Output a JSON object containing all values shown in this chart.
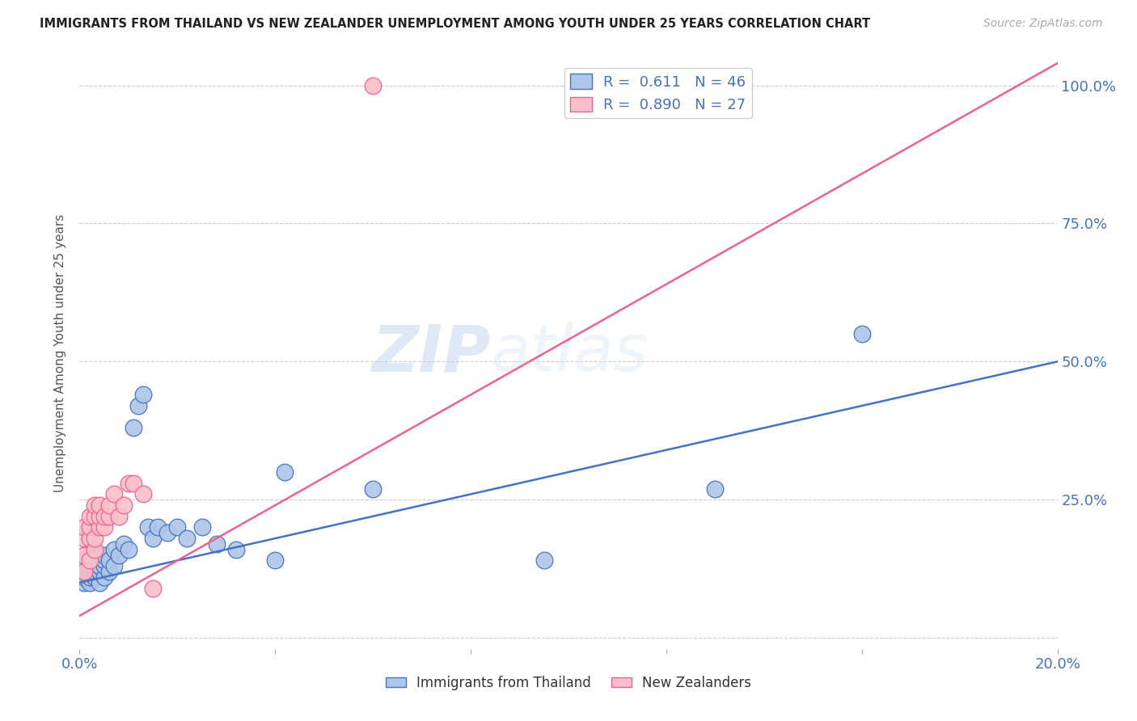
{
  "title": "IMMIGRANTS FROM THAILAND VS NEW ZEALANDER UNEMPLOYMENT AMONG YOUTH UNDER 25 YEARS CORRELATION CHART",
  "source": "Source: ZipAtlas.com",
  "ylabel": "Unemployment Among Youth under 25 years",
  "r_thailand": 0.611,
  "n_thailand": 46,
  "r_nz": 0.89,
  "n_nz": 27,
  "xlim": [
    0.0,
    0.2
  ],
  "ylim": [
    -0.02,
    1.05
  ],
  "xticks": [
    0.0,
    0.04,
    0.08,
    0.12,
    0.16,
    0.2
  ],
  "xticklabels": [
    "0.0%",
    "",
    "",
    "",
    "",
    "20.0%"
  ],
  "yticks": [
    0.0,
    0.25,
    0.5,
    0.75,
    1.0
  ],
  "yticklabels_right": [
    "",
    "25.0%",
    "50.0%",
    "75.0%",
    "100.0%"
  ],
  "color_thailand": "#aec6e8",
  "color_nz": "#f9c0cb",
  "line_color_thailand": "#4472c4",
  "line_color_nz": "#f06090",
  "watermark_part1": "ZIP",
  "watermark_part2": "atlas",
  "thailand_scatter_x": [
    0.001,
    0.001,
    0.001,
    0.001,
    0.002,
    0.002,
    0.002,
    0.002,
    0.002,
    0.003,
    0.003,
    0.003,
    0.003,
    0.004,
    0.004,
    0.004,
    0.004,
    0.005,
    0.005,
    0.005,
    0.005,
    0.006,
    0.006,
    0.007,
    0.007,
    0.008,
    0.009,
    0.01,
    0.011,
    0.012,
    0.013,
    0.014,
    0.015,
    0.016,
    0.018,
    0.02,
    0.022,
    0.025,
    0.028,
    0.032,
    0.04,
    0.042,
    0.06,
    0.095,
    0.13,
    0.16
  ],
  "thailand_scatter_y": [
    0.1,
    0.11,
    0.12,
    0.14,
    0.1,
    0.11,
    0.12,
    0.13,
    0.15,
    0.11,
    0.12,
    0.13,
    0.14,
    0.1,
    0.12,
    0.13,
    0.15,
    0.11,
    0.13,
    0.14,
    0.15,
    0.12,
    0.14,
    0.13,
    0.16,
    0.15,
    0.17,
    0.16,
    0.38,
    0.42,
    0.44,
    0.2,
    0.18,
    0.2,
    0.19,
    0.2,
    0.18,
    0.2,
    0.17,
    0.16,
    0.14,
    0.3,
    0.27,
    0.14,
    0.27,
    0.55
  ],
  "nz_scatter_x": [
    0.001,
    0.001,
    0.001,
    0.001,
    0.002,
    0.002,
    0.002,
    0.002,
    0.003,
    0.003,
    0.003,
    0.003,
    0.004,
    0.004,
    0.004,
    0.005,
    0.005,
    0.006,
    0.006,
    0.007,
    0.008,
    0.009,
    0.01,
    0.011,
    0.013,
    0.015,
    0.06
  ],
  "nz_scatter_y": [
    0.12,
    0.15,
    0.18,
    0.2,
    0.14,
    0.18,
    0.2,
    0.22,
    0.16,
    0.18,
    0.22,
    0.24,
    0.2,
    0.22,
    0.24,
    0.2,
    0.22,
    0.22,
    0.24,
    0.26,
    0.22,
    0.24,
    0.28,
    0.28,
    0.26,
    0.09,
    1.0
  ],
  "nz_line_x": [
    0.0,
    0.2
  ],
  "nz_line_y": [
    0.04,
    1.04
  ],
  "th_line_x": [
    0.0,
    0.2
  ],
  "th_line_y": [
    0.1,
    0.5
  ]
}
